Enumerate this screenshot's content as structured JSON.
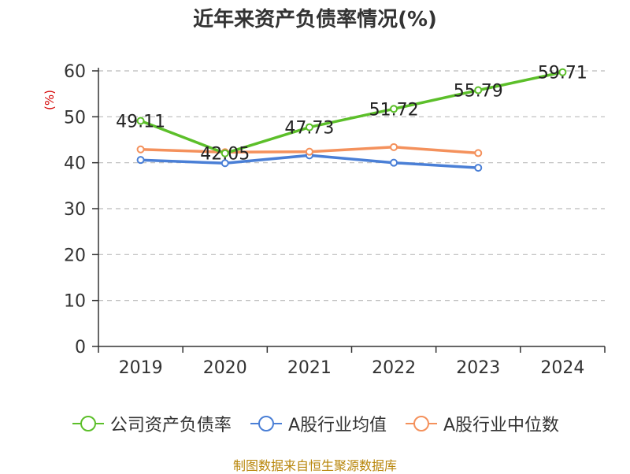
{
  "title": "近年来资产负债率情况(%)",
  "source": "制图数据来自恒生聚源数据库",
  "colors": {
    "company": "#5cbf2a",
    "industry_avg": "#4a7fd6",
    "industry_median": "#f4915c",
    "axis": "#333333",
    "grid": "#bbbbbb",
    "unit": "#d40000"
  },
  "chart_data": {
    "type": "line",
    "title": "近年来资产负债率情况(%)",
    "xlabel": "",
    "ylabel": "(%)",
    "categories": [
      "2019",
      "2020",
      "2021",
      "2022",
      "2023",
      "2024"
    ],
    "ylim": [
      0,
      60
    ],
    "yticks": [
      0,
      10,
      20,
      30,
      40,
      50,
      60
    ],
    "grid": true,
    "legend_position": "bottom",
    "series": [
      {
        "name": "公司资产负债率",
        "values": [
          49.11,
          42.05,
          47.73,
          51.72,
          55.79,
          59.71
        ],
        "show_labels": true
      },
      {
        "name": "A股行业均值",
        "values": [
          40.6,
          39.9,
          41.6,
          40.0,
          38.9,
          null
        ],
        "show_labels": false
      },
      {
        "name": "A股行业中位数",
        "values": [
          42.9,
          42.3,
          42.4,
          43.4,
          42.1,
          null
        ],
        "show_labels": false
      }
    ]
  }
}
